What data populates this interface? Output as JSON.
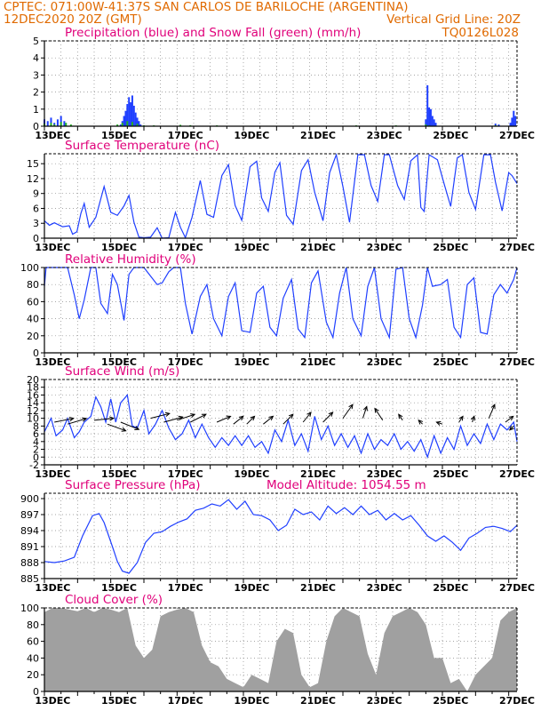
{
  "header": {
    "line1_left": "CPTEC:   071:00W-41:37S  SAN CARLOS DE BARILOCHE (ARGENTINA)",
    "line2_left": "12DEC2020 20Z (GMT)",
    "line2_right": "Vertical Grid Line: 20Z",
    "code": "TQ0126L028"
  },
  "colors": {
    "header": "#e06a00",
    "title": "#e0007a",
    "line": "#1f3fff",
    "snow": "#22b022",
    "cloud": "#a0a0a0"
  },
  "chart_data": [
    {
      "type": "bar",
      "title": "Precipitation (blue) and Snow Fall (green) (mm/h)",
      "xlabels": [
        "13DEC",
        "15DEC",
        "17DEC",
        "19DEC",
        "21DEC",
        "23DEC",
        "25DEC",
        "27DEC"
      ],
      "yticks": [
        0,
        1,
        2,
        3,
        4,
        5
      ],
      "ylim": [
        0,
        5
      ],
      "xlim": [
        0,
        14.25
      ],
      "series": [
        {
          "name": "blue",
          "x": [
            0.0,
            0.1,
            0.2,
            0.3,
            0.4,
            0.5,
            0.6,
            2.3,
            2.35,
            2.4,
            2.45,
            2.5,
            2.55,
            2.6,
            2.65,
            2.7,
            2.75,
            2.8,
            2.85,
            2.9,
            11.5,
            11.55,
            11.6,
            11.65,
            11.7,
            11.75,
            11.8,
            13.6,
            13.7,
            14.05,
            14.1,
            14.15,
            14.2
          ],
          "values": [
            0.4,
            0.3,
            0.5,
            0.2,
            0.4,
            0.6,
            0.3,
            0.1,
            0.3,
            0.6,
            0.9,
            1.3,
            1.7,
            1.4,
            1.8,
            1.2,
            0.8,
            0.5,
            0.3,
            0.1,
            0.4,
            2.4,
            1.1,
            1.0,
            0.6,
            0.4,
            0.2,
            0.15,
            0.1,
            0.2,
            0.5,
            0.9,
            0.6
          ]
        },
        {
          "name": "green",
          "x": [
            0.0,
            0.2,
            0.3,
            0.5,
            0.65,
            0.8,
            2.2,
            2.35,
            2.5,
            2.65,
            2.8,
            3.0,
            3.3,
            4.1,
            4.4,
            5.2,
            9.4,
            10.6,
            11.5,
            11.6,
            13.6
          ],
          "values": [
            0.15,
            0.2,
            0.1,
            0.25,
            0.2,
            0.1,
            0.1,
            0.2,
            0.3,
            0.25,
            0.15,
            0.05,
            0.05,
            0.08,
            0.06,
            0.05,
            0.05,
            0.05,
            0.1,
            0.05,
            0.05
          ]
        }
      ]
    },
    {
      "type": "line",
      "title": "Surface Temperature (nC)",
      "xlabels": [
        "13DEC",
        "15DEC",
        "17DEC",
        "19DEC",
        "21DEC",
        "23DEC",
        "25DEC",
        "27DEC"
      ],
      "yticks": [
        0,
        3,
        6,
        9,
        12,
        15
      ],
      "ylim": [
        0,
        17
      ],
      "xlim": [
        0,
        14.25
      ],
      "x": [
        0.0,
        0.15,
        0.3,
        0.55,
        0.75,
        0.85,
        0.98,
        1.1,
        1.2,
        1.35,
        1.55,
        1.8,
        2.0,
        2.2,
        2.4,
        2.55,
        2.7,
        2.85,
        3.0,
        3.2,
        3.4,
        3.55,
        3.75,
        3.95,
        4.1,
        4.25,
        4.45,
        4.7,
        4.9,
        5.1,
        5.35,
        5.55,
        5.75,
        5.95,
        6.2,
        6.4,
        6.55,
        6.75,
        6.95,
        7.1,
        7.3,
        7.5,
        7.75,
        7.95,
        8.15,
        8.4,
        8.6,
        8.8,
        9.0,
        9.2,
        9.45,
        9.65,
        9.85,
        10.05,
        10.25,
        10.4,
        10.65,
        10.85,
        11.05,
        11.25,
        11.35,
        11.45,
        11.6,
        11.85,
        12.05,
        12.25,
        12.45,
        12.6,
        12.8,
        13.0,
        13.25,
        13.45,
        13.6,
        13.8,
        14.0,
        14.1,
        14.25
      ],
      "values": [
        3.5,
        2.6,
        3.1,
        2.3,
        2.5,
        0.8,
        1.3,
        5.0,
        7.0,
        2.2,
        4.2,
        10.4,
        5.2,
        4.6,
        6.5,
        8.6,
        3.2,
        0.2,
        0.1,
        0.2,
        2.1,
        0.0,
        0.1,
        5.2,
        2.2,
        0.1,
        4.2,
        11.6,
        4.8,
        4.2,
        12.6,
        14.8,
        6.6,
        3.6,
        14.4,
        15.5,
        8.1,
        5.4,
        13.3,
        15.2,
        4.6,
        2.8,
        13.6,
        15.8,
        9.2,
        3.5,
        13.2,
        16.8,
        10.4,
        3.2,
        16.8,
        16.8,
        10.6,
        7.4,
        16.8,
        16.8,
        10.6,
        7.8,
        15.6,
        16.8,
        6.2,
        5.4,
        16.8,
        15.8,
        11.0,
        6.4,
        16.2,
        16.8,
        9.2,
        5.8,
        16.8,
        16.8,
        11.3,
        5.5,
        13.2,
        12.6,
        11.0
      ]
    },
    {
      "type": "line",
      "title": "Relative Humidity (%)",
      "xlabels": [
        "13DEC",
        "15DEC",
        "17DEC",
        "19DEC",
        "21DEC",
        "23DEC",
        "25DEC",
        "27DEC"
      ],
      "yticks": [
        0,
        20,
        40,
        60,
        80,
        100
      ],
      "ylim": [
        0,
        100
      ],
      "xlim": [
        0,
        14.25
      ],
      "x": [
        0.0,
        0.05,
        0.3,
        0.55,
        0.7,
        0.9,
        1.05,
        1.2,
        1.4,
        1.55,
        1.7,
        1.9,
        2.05,
        2.2,
        2.4,
        2.55,
        2.7,
        2.85,
        3.0,
        3.2,
        3.4,
        3.55,
        3.75,
        3.9,
        4.1,
        4.25,
        4.45,
        4.7,
        4.9,
        5.1,
        5.35,
        5.55,
        5.75,
        5.95,
        6.2,
        6.4,
        6.6,
        6.8,
        7.0,
        7.2,
        7.45,
        7.65,
        7.85,
        8.05,
        8.25,
        8.5,
        8.7,
        8.9,
        9.1,
        9.3,
        9.55,
        9.75,
        9.95,
        10.15,
        10.4,
        10.6,
        10.8,
        11.0,
        11.2,
        11.4,
        11.55,
        11.7,
        11.95,
        12.15,
        12.35,
        12.55,
        12.75,
        12.95,
        13.15,
        13.35,
        13.55,
        13.75,
        13.95,
        14.15,
        14.25
      ],
      "values": [
        78,
        100,
        100,
        100,
        100,
        68,
        40,
        62,
        100,
        100,
        58,
        46,
        92,
        80,
        38,
        92,
        100,
        100,
        100,
        90,
        80,
        82,
        95,
        100,
        100,
        58,
        22,
        66,
        80,
        40,
        20,
        66,
        82,
        26,
        24,
        70,
        78,
        30,
        20,
        64,
        86,
        28,
        18,
        82,
        96,
        36,
        18,
        70,
        100,
        40,
        20,
        78,
        100,
        40,
        18,
        98,
        100,
        40,
        18,
        56,
        100,
        78,
        80,
        86,
        30,
        18,
        80,
        88,
        24,
        22,
        68,
        80,
        70,
        86,
        100
      ]
    },
    {
      "type": "line",
      "title": "Surface Wind (m/s)",
      "xlabels": [
        "13DEC",
        "15DEC",
        "17DEC",
        "19DEC",
        "21DEC",
        "23DEC",
        "25DEC",
        "27DEC"
      ],
      "yticks": [
        -2,
        0,
        2,
        4,
        6,
        8,
        10,
        12,
        14,
        16,
        18,
        20
      ],
      "ylim": [
        -2,
        20
      ],
      "xlim": [
        0,
        14.25
      ],
      "x": [
        0.0,
        0.2,
        0.35,
        0.55,
        0.7,
        0.9,
        1.05,
        1.2,
        1.4,
        1.55,
        1.7,
        1.85,
        2.0,
        2.15,
        2.3,
        2.5,
        2.65,
        2.8,
        3.0,
        3.15,
        3.35,
        3.55,
        3.75,
        3.95,
        4.15,
        4.35,
        4.55,
        4.75,
        4.95,
        5.15,
        5.35,
        5.55,
        5.75,
        5.95,
        6.15,
        6.35,
        6.55,
        6.75,
        6.95,
        7.15,
        7.35,
        7.55,
        7.75,
        7.95,
        8.15,
        8.35,
        8.55,
        8.75,
        8.95,
        9.15,
        9.35,
        9.55,
        9.75,
        9.95,
        10.15,
        10.35,
        10.55,
        10.75,
        10.95,
        11.15,
        11.35,
        11.55,
        11.75,
        11.95,
        12.15,
        12.35,
        12.55,
        12.75,
        12.95,
        13.15,
        13.35,
        13.55,
        13.75,
        13.95,
        14.15,
        14.25
      ],
      "values": [
        6.5,
        10.0,
        5.5,
        7.0,
        10.0,
        5.0,
        6.5,
        9.0,
        10.5,
        15.5,
        13.0,
        9.0,
        15.0,
        9.0,
        14.0,
        16.0,
        8.0,
        7.5,
        12.0,
        6.0,
        8.5,
        12.0,
        7.5,
        4.5,
        6.0,
        9.5,
        5.0,
        8.5,
        5.0,
        2.5,
        5.0,
        3.0,
        5.5,
        3.0,
        5.5,
        2.5,
        4.0,
        1.0,
        7.0,
        4.0,
        9.5,
        3.0,
        6.0,
        1.5,
        10.5,
        4.5,
        8.0,
        3.0,
        6.0,
        2.5,
        5.5,
        1.0,
        6.0,
        2.0,
        4.5,
        3.0,
        6.0,
        2.0,
        4.0,
        1.5,
        4.5,
        0.0,
        5.5,
        1.0,
        5.0,
        2.0,
        8.0,
        3.0,
        6.0,
        3.5,
        8.5,
        4.5,
        8.5,
        7.0,
        9.0,
        4.0
      ],
      "arrows": [
        {
          "x": 0.3,
          "y": 9.0,
          "u": 1.0,
          "v": 0.2
        },
        {
          "x": 0.7,
          "y": 8.5,
          "u": 1.0,
          "v": 0.3
        },
        {
          "x": 1.5,
          "y": 9.5,
          "u": 1.0,
          "v": 0.1
        },
        {
          "x": 1.9,
          "y": 8.5,
          "u": 1.1,
          "v": -0.4
        },
        {
          "x": 2.3,
          "y": 9.0,
          "u": 1.5,
          "v": -0.6
        },
        {
          "x": 3.2,
          "y": 10.0,
          "u": 1.2,
          "v": 0.3
        },
        {
          "x": 3.6,
          "y": 9.0,
          "u": 1.1,
          "v": 0.3
        },
        {
          "x": 4.0,
          "y": 9.5,
          "u": 0.9,
          "v": 0.3
        },
        {
          "x": 4.4,
          "y": 9.0,
          "u": 0.8,
          "v": 0.4
        },
        {
          "x": 5.2,
          "y": 9.0,
          "u": 0.7,
          "v": 0.3
        },
        {
          "x": 5.7,
          "y": 8.5,
          "u": 0.5,
          "v": 0.4
        },
        {
          "x": 6.1,
          "y": 8.5,
          "u": 0.4,
          "v": 0.4
        },
        {
          "x": 6.6,
          "y": 8.5,
          "u": 0.5,
          "v": 0.4
        },
        {
          "x": 7.2,
          "y": 8.5,
          "u": 0.5,
          "v": 0.5
        },
        {
          "x": 7.8,
          "y": 9.0,
          "u": 0.4,
          "v": 0.5
        },
        {
          "x": 8.4,
          "y": 9.0,
          "u": 0.5,
          "v": 0.5
        },
        {
          "x": 9.0,
          "y": 10.0,
          "u": 0.5,
          "v": 0.7
        },
        {
          "x": 9.6,
          "y": 10.0,
          "u": 0.2,
          "v": 0.6
        },
        {
          "x": 10.2,
          "y": 9.5,
          "u": -0.4,
          "v": 0.6
        },
        {
          "x": 10.8,
          "y": 9.5,
          "u": -0.2,
          "v": 0.3
        },
        {
          "x": 11.4,
          "y": 8.5,
          "u": -0.2,
          "v": 0.2
        },
        {
          "x": 12.0,
          "y": 8.5,
          "u": -0.3,
          "v": 0.1
        },
        {
          "x": 12.5,
          "y": 9.0,
          "u": 0.2,
          "v": 0.3
        },
        {
          "x": 12.9,
          "y": 9.0,
          "u": 0.1,
          "v": 0.3
        },
        {
          "x": 13.4,
          "y": 10.0,
          "u": 0.3,
          "v": 0.7
        },
        {
          "x": 13.9,
          "y": 9.0,
          "u": 0.4,
          "v": 0.3
        },
        {
          "x": 14.15,
          "y": 8.0,
          "u": -0.2,
          "v": -0.2
        }
      ]
    },
    {
      "type": "line",
      "title": "Surface Pressure (hPa)",
      "annotation": "Model Altitude: 1054.55  m",
      "xlabels": [
        "13DEC",
        "15DEC",
        "17DEC",
        "19DEC",
        "21DEC",
        "23DEC",
        "25DEC",
        "27DEC"
      ],
      "yticks": [
        885,
        888,
        891,
        894,
        897,
        900
      ],
      "ylim": [
        885,
        901
      ],
      "xlim": [
        0,
        14.25
      ],
      "x": [
        0.0,
        0.3,
        0.6,
        0.9,
        1.15,
        1.45,
        1.65,
        1.8,
        2.05,
        2.2,
        2.35,
        2.55,
        2.8,
        3.05,
        3.3,
        3.55,
        3.8,
        4.05,
        4.3,
        4.55,
        4.8,
        5.05,
        5.3,
        5.55,
        5.8,
        6.05,
        6.3,
        6.55,
        6.8,
        7.05,
        7.3,
        7.55,
        7.8,
        8.05,
        8.3,
        8.55,
        8.8,
        9.05,
        9.3,
        9.55,
        9.8,
        10.05,
        10.3,
        10.55,
        10.8,
        11.05,
        11.3,
        11.55,
        11.8,
        12.05,
        12.3,
        12.55,
        12.8,
        13.05,
        13.3,
        13.55,
        13.8,
        14.05,
        14.25
      ],
      "values": [
        888.2,
        888.0,
        888.3,
        889.0,
        893.0,
        896.8,
        897.2,
        895.5,
        891.0,
        888.2,
        886.4,
        886.0,
        888.0,
        891.8,
        893.5,
        893.8,
        894.8,
        895.6,
        896.2,
        897.8,
        898.2,
        899.0,
        898.6,
        899.8,
        898.0,
        899.5,
        897.0,
        896.8,
        896.0,
        894.0,
        895.0,
        898.0,
        897.0,
        897.5,
        896.0,
        898.6,
        897.2,
        898.3,
        897.0,
        898.6,
        897.0,
        897.8,
        896.0,
        897.2,
        896.0,
        896.8,
        895.0,
        893.0,
        892.0,
        893.0,
        891.8,
        890.3,
        892.6,
        893.5,
        894.6,
        894.8,
        894.4,
        893.8,
        895.0
      ]
    },
    {
      "type": "area",
      "title": "Cloud Cover (%)",
      "xlabels": [
        "13DEC",
        "15DEC",
        "17DEC",
        "19DEC",
        "21DEC",
        "23DEC",
        "25DEC",
        "27DEC"
      ],
      "yticks": [
        0,
        20,
        40,
        60,
        80,
        100
      ],
      "ylim": [
        0,
        100
      ],
      "xlim": [
        0,
        14.25
      ],
      "x": [
        0.0,
        0.25,
        0.5,
        0.75,
        1.0,
        1.25,
        1.5,
        1.75,
        2.0,
        2.25,
        2.5,
        2.75,
        3.0,
        3.25,
        3.5,
        3.75,
        4.0,
        4.25,
        4.5,
        4.75,
        5.0,
        5.25,
        5.5,
        5.75,
        6.0,
        6.25,
        6.5,
        6.75,
        7.0,
        7.25,
        7.5,
        7.75,
        8.0,
        8.25,
        8.5,
        8.75,
        9.0,
        9.25,
        9.5,
        9.75,
        10.0,
        10.25,
        10.5,
        10.75,
        11.0,
        11.25,
        11.5,
        11.75,
        12.0,
        12.25,
        12.5,
        12.75,
        13.0,
        13.25,
        13.5,
        13.75,
        14.0,
        14.25
      ],
      "values": [
        95,
        100,
        100,
        98,
        96,
        100,
        95,
        100,
        98,
        95,
        100,
        55,
        40,
        50,
        90,
        95,
        98,
        100,
        95,
        55,
        35,
        30,
        15,
        10,
        5,
        20,
        15,
        10,
        60,
        75,
        70,
        20,
        5,
        10,
        60,
        90,
        100,
        95,
        90,
        45,
        20,
        70,
        90,
        95,
        100,
        95,
        80,
        40,
        40,
        10,
        15,
        0,
        20,
        30,
        40,
        85,
        95,
        100
      ]
    }
  ]
}
